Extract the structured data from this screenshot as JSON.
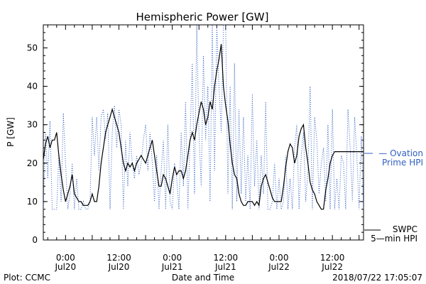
{
  "chart_data": {
    "type": "line",
    "title": "Hemispheric Power [GW]",
    "ylabel": "P [GW]",
    "xlabel": "Date and Time",
    "ylim": [
      0,
      56
    ],
    "y_ticks": [
      "0",
      "10",
      "20",
      "30",
      "40",
      "50"
    ],
    "x_ticks": [
      {
        "time": "0:00",
        "day": "Jul20",
        "hours": 0
      },
      {
        "time": "12:00",
        "day": "Jul20",
        "hours": 12
      },
      {
        "time": "0:00",
        "day": "Jul21",
        "hours": 24
      },
      {
        "time": "12:00",
        "day": "Jul21",
        "hours": 36
      },
      {
        "time": "0:00",
        "day": "Jul22",
        "hours": 48
      },
      {
        "time": "12:00",
        "day": "Jul22",
        "hours": 60
      }
    ],
    "xlim_hours": [
      -5,
      67
    ],
    "grid": false,
    "series": [
      {
        "name": "Ovation Prime HPI",
        "label_line1": "— Ovation",
        "label_line2": "Prime HPI",
        "color": "#2f5fbf",
        "style": "dotted",
        "x_hours": [
          -5,
          -4.5,
          -4,
          -3.5,
          -3,
          -2.5,
          -2,
          -1.5,
          -1,
          -0.5,
          0,
          0.5,
          1,
          1.5,
          2,
          2.5,
          3,
          3.5,
          4,
          4.5,
          5,
          5.5,
          6,
          6.5,
          7,
          7.5,
          8,
          8.5,
          9,
          9.5,
          10,
          10.5,
          11,
          11.5,
          12,
          12.5,
          13,
          13.5,
          14,
          14.5,
          15,
          15.5,
          16,
          16.5,
          17,
          17.5,
          18,
          18.5,
          19,
          19.5,
          20,
          20.5,
          21,
          21.5,
          22,
          22.5,
          23,
          23.5,
          24,
          24.5,
          25,
          25.5,
          26,
          26.5,
          27,
          27.5,
          28,
          28.5,
          29,
          29.5,
          30,
          30.5,
          31,
          31.5,
          32,
          32.5,
          33,
          33.5,
          34,
          34.5,
          35,
          35.5,
          36,
          36.5,
          37,
          37.5,
          38,
          38.5,
          39,
          39.5,
          40,
          40.5,
          41,
          41.5,
          42,
          42.5,
          43,
          43.5,
          44,
          44.5,
          45,
          45.5,
          46,
          46.5,
          47,
          47.5,
          48,
          48.5,
          49,
          49.5,
          50,
          50.5,
          51,
          51.5,
          52,
          52.5,
          53,
          53.5,
          54,
          54.5,
          55,
          55.5,
          56,
          56.5,
          57,
          57.5,
          58,
          58.5,
          59,
          59.5,
          60,
          60.5,
          61,
          61.5,
          62,
          62.5,
          63,
          63.5,
          64,
          64.5,
          65,
          65.5,
          66,
          66.5,
          67
        ],
        "values": [
          8,
          28,
          16,
          31,
          8,
          8,
          8,
          22,
          10,
          33,
          20,
          8,
          12,
          20,
          8,
          16,
          8,
          8,
          10,
          8,
          8,
          10,
          32,
          22,
          32,
          18,
          32,
          34,
          26,
          33,
          8,
          28,
          35,
          24,
          34,
          30,
          8,
          26,
          14,
          28,
          20,
          16,
          22,
          17,
          20,
          26,
          30,
          18,
          28,
          20,
          10,
          22,
          8,
          18,
          26,
          8,
          30,
          10,
          8,
          20,
          16,
          8,
          28,
          14,
          36,
          8,
          26,
          46,
          12,
          56,
          28,
          14,
          48,
          26,
          40,
          10,
          56,
          18,
          56,
          40,
          28,
          56,
          56,
          12,
          40,
          8,
          46,
          10,
          34,
          12,
          32,
          10,
          22,
          8,
          38,
          14,
          26,
          8,
          22,
          12,
          36,
          8,
          8,
          10,
          20,
          8,
          16,
          8,
          10,
          22,
          8,
          16,
          8,
          24,
          30,
          8,
          22,
          28,
          10,
          18,
          40,
          8,
          32,
          26,
          12,
          20,
          24,
          10,
          30,
          8,
          34,
          8,
          16,
          8,
          22,
          20,
          8,
          34,
          24,
          10,
          32,
          22,
          8,
          27,
          8
        ]
      },
      {
        "name": "SWPC 5-min HPI",
        "label_line1": "SWPC",
        "label_line2": "5—min HPI",
        "color": "#000000",
        "style": "solid",
        "x_hours": [
          -5,
          -4.5,
          -4,
          -3.5,
          -3,
          -2.5,
          -2,
          -1.5,
          -1,
          -0.5,
          0,
          0.5,
          1,
          1.5,
          2,
          2.5,
          3,
          3.5,
          4,
          4.5,
          5,
          5.5,
          6,
          6.5,
          7,
          7.5,
          8,
          8.5,
          9,
          9.5,
          10,
          10.5,
          11,
          11.5,
          12,
          12.5,
          13,
          13.5,
          14,
          14.5,
          15,
          15.5,
          16,
          16.5,
          17,
          17.5,
          18,
          18.5,
          19,
          19.5,
          20,
          20.5,
          21,
          21.5,
          22,
          22.5,
          23,
          23.5,
          24,
          24.5,
          25,
          25.5,
          26,
          26.5,
          27,
          27.5,
          28,
          28.5,
          29,
          29.5,
          30,
          30.5,
          31,
          31.5,
          32,
          32.5,
          33,
          33.5,
          34,
          34.5,
          35,
          35.5,
          36,
          36.5,
          37,
          37.5,
          38,
          38.5,
          39,
          39.5,
          40,
          40.5,
          41,
          41.5,
          42,
          42.5,
          43,
          43.5,
          44,
          44.5,
          45,
          45.5,
          46,
          46.5,
          47,
          47.5,
          48,
          48.5,
          49,
          49.5,
          50,
          50.5,
          51,
          51.5,
          52,
          52.5,
          53,
          53.5,
          54,
          54.5,
          55,
          55.5,
          56,
          56.5,
          57,
          57.5,
          58,
          58.5,
          59,
          59.5,
          60,
          60.5,
          61,
          61.5,
          62,
          62.5,
          63,
          63.5,
          64,
          64.5,
          65,
          65.5,
          66,
          66.5,
          67
        ],
        "values": [
          21,
          25,
          27,
          24,
          26,
          26,
          28,
          22,
          17,
          13,
          10,
          12,
          14,
          17,
          12,
          11,
          10,
          10,
          9,
          9,
          9,
          10,
          12,
          10,
          10,
          14,
          20,
          24,
          28,
          30,
          32,
          34,
          32,
          30,
          28,
          24,
          20,
          18,
          20,
          19,
          20,
          18,
          20,
          21,
          22,
          21,
          20,
          22,
          24,
          26,
          22,
          18,
          14,
          14,
          17,
          16,
          14,
          12,
          16,
          19,
          17,
          18,
          18,
          16,
          18,
          22,
          26,
          28,
          26,
          30,
          33,
          36,
          34,
          30,
          32,
          36,
          34,
          40,
          44,
          47,
          51,
          40,
          35,
          31,
          25,
          20,
          17,
          16,
          12,
          10,
          9,
          9,
          10,
          10,
          10,
          9,
          10,
          9,
          14,
          16,
          17,
          15,
          13,
          11,
          10,
          10,
          10,
          10,
          14,
          19,
          23,
          25,
          24,
          20,
          22,
          27,
          29,
          30,
          24,
          20,
          15,
          13,
          12,
          10,
          9,
          8,
          8,
          13,
          16,
          20,
          22,
          23,
          23,
          23,
          23,
          23,
          23,
          23,
          23,
          23,
          23,
          23,
          23,
          23,
          23
        ]
      }
    ]
  },
  "footer": {
    "left": "Plot: CCMC",
    "right": "2018/07/22 17:05:07"
  }
}
